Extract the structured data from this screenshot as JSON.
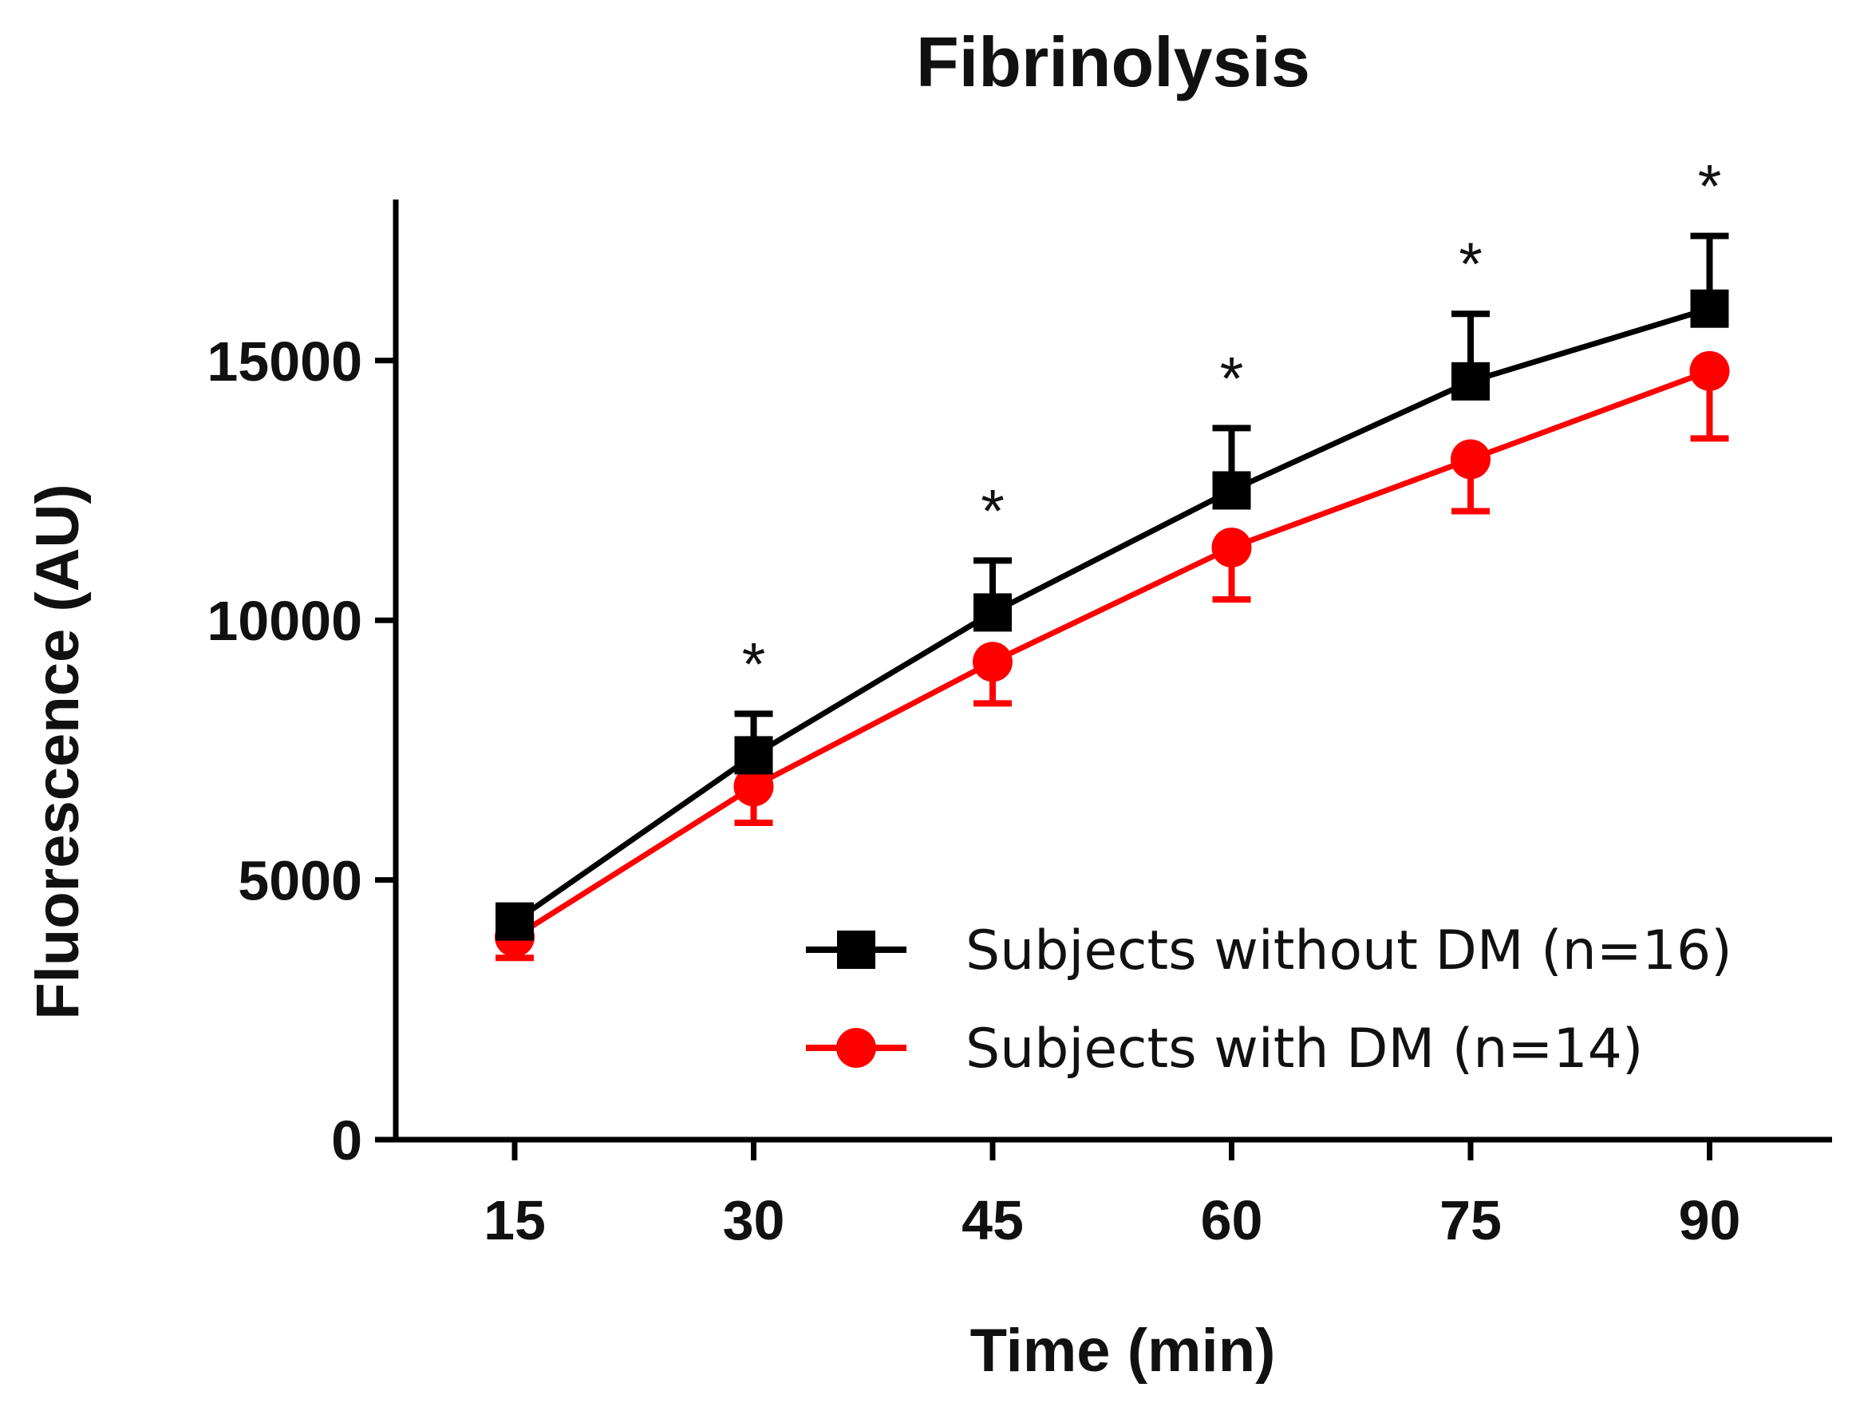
{
  "chart_data": {
    "type": "line",
    "title": "Fibrinolysis",
    "xlabel": "Time (min)",
    "ylabel": "Fluorescence (AU)",
    "x": [
      15,
      30,
      45,
      60,
      75,
      90
    ],
    "x_ticks": [
      "15",
      "30",
      "45",
      "60",
      "75",
      "90"
    ],
    "y_ticks": [
      "0",
      "5000",
      "10000",
      "15000"
    ],
    "y_tick_values": [
      0,
      5000,
      10000,
      15000
    ],
    "ylim": [
      0,
      18000
    ],
    "grid": false,
    "legend_position": "lower-right",
    "series": [
      {
        "name": "Subjects without DM (n=16)",
        "color": "#000000",
        "marker": "square",
        "values": [
          4200,
          7400,
          10150,
          12500,
          14600,
          16000
        ],
        "error_up": [
          200,
          800,
          1000,
          1200,
          1300,
          1400
        ],
        "error_direction": "up"
      },
      {
        "name": "Subjects with DM (n=14)",
        "color": "#ff0000",
        "marker": "circle",
        "values": [
          3900,
          6800,
          9200,
          11400,
          13100,
          14800
        ],
        "error_down": [
          400,
          700,
          800,
          1000,
          1000,
          1300
        ],
        "error_direction": "down"
      }
    ],
    "significance": {
      "symbol": "*",
      "x": [
        30,
        45,
        60,
        75,
        90
      ]
    }
  }
}
